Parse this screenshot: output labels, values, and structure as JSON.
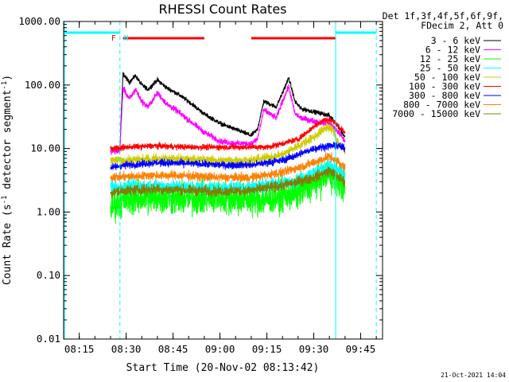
{
  "chart_data": {
    "type": "line",
    "title": "RHESSI Count Rates",
    "xlabel": "Start Time (20-Nov-02 08:13:42)",
    "ylabel": "Count Rate (s⁻¹ detector segment⁻¹)",
    "ylabel_main": "Count Rate (s",
    "ylabel_sup1": "-1",
    "ylabel_mid": " detector segment",
    "ylabel_sup2": "-1",
    "ylabel_end": ")",
    "yscale": "log",
    "xlim": [
      "08:10",
      "09:52"
    ],
    "ylim": [
      0.01,
      1000
    ],
    "x_ticks": [
      "08:15",
      "08:30",
      "08:45",
      "09:00",
      "09:15",
      "09:30",
      "09:45"
    ],
    "y_ticks": [
      "0.01",
      "0.10",
      "1.00",
      "10.00",
      "100.00",
      "1000.00"
    ],
    "legend_header": [
      "Det 1f,3f,4f,5f,6f,9f,",
      "FDecim 2, Att 0"
    ],
    "legend_position": "top-right, outside plot",
    "footer": "21-Oct-2021 14:04",
    "annotations": [
      {
        "text": "F",
        "x": "08:26",
        "color": "#ff0000"
      },
      {
        "text": "N",
        "x": "08:30",
        "color": "#00ffff"
      }
    ],
    "night_segments": [
      {
        "from": "08:10",
        "to": "08:28"
      },
      {
        "from": "09:37",
        "to": "09:50"
      }
    ],
    "flare_flag_segments": [
      {
        "from": "08:29",
        "to": "08:55"
      },
      {
        "from": "09:10",
        "to": "09:37"
      }
    ],
    "cyan_markers_solid": [
      "08:10",
      "09:37"
    ],
    "cyan_markers_dashed": [
      "08:28",
      "09:50"
    ],
    "data_start": "08:25",
    "data_end": "09:40",
    "series": [
      {
        "name": "3 - 6 keV",
        "color": "#000000",
        "noise": 0.03,
        "points": [
          [
            "08:25",
            10
          ],
          [
            "08:28",
            10
          ],
          [
            "08:29",
            150
          ],
          [
            "08:31",
            110
          ],
          [
            "08:33",
            140
          ],
          [
            "08:35",
            100
          ],
          [
            "08:37",
            85
          ],
          [
            "08:40",
            120
          ],
          [
            "08:43",
            90
          ],
          [
            "08:46",
            75
          ],
          [
            "08:50",
            55
          ],
          [
            "08:55",
            35
          ],
          [
            "09:00",
            25
          ],
          [
            "09:05",
            20
          ],
          [
            "09:10",
            16
          ],
          [
            "09:12",
            20
          ],
          [
            "09:14",
            55
          ],
          [
            "09:16",
            50
          ],
          [
            "09:18",
            45
          ],
          [
            "09:20",
            75
          ],
          [
            "09:22",
            130
          ],
          [
            "09:24",
            55
          ],
          [
            "09:26",
            42
          ],
          [
            "09:30",
            38
          ],
          [
            "09:35",
            33
          ],
          [
            "09:38",
            22
          ],
          [
            "09:40",
            15
          ]
        ]
      },
      {
        "name": "6 - 12 keV",
        "color": "#ff00ff",
        "noise": 0.04,
        "points": [
          [
            "08:25",
            9
          ],
          [
            "08:28",
            9
          ],
          [
            "08:29",
            90
          ],
          [
            "08:31",
            60
          ],
          [
            "08:33",
            85
          ],
          [
            "08:35",
            55
          ],
          [
            "08:37",
            45
          ],
          [
            "08:40",
            75
          ],
          [
            "08:43",
            50
          ],
          [
            "08:46",
            40
          ],
          [
            "08:50",
            28
          ],
          [
            "08:55",
            18
          ],
          [
            "09:00",
            13
          ],
          [
            "09:05",
            12
          ],
          [
            "09:10",
            12
          ],
          [
            "09:12",
            14
          ],
          [
            "09:14",
            40
          ],
          [
            "09:16",
            35
          ],
          [
            "09:18",
            30
          ],
          [
            "09:20",
            55
          ],
          [
            "09:22",
            95
          ],
          [
            "09:24",
            35
          ],
          [
            "09:26",
            30
          ],
          [
            "09:30",
            27
          ],
          [
            "09:35",
            25
          ],
          [
            "09:38",
            18
          ],
          [
            "09:40",
            13
          ]
        ]
      },
      {
        "name": "12 - 25 keV",
        "color": "#00ff00",
        "noise": 0.22,
        "points": [
          [
            "08:25",
            1.2
          ],
          [
            "08:30",
            1.6
          ],
          [
            "08:40",
            1.7
          ],
          [
            "08:50",
            1.6
          ],
          [
            "09:00",
            1.7
          ],
          [
            "09:10",
            1.6
          ],
          [
            "09:15",
            1.6
          ],
          [
            "09:20",
            1.8
          ],
          [
            "09:25",
            2.0
          ],
          [
            "09:30",
            2.8
          ],
          [
            "09:35",
            4.0
          ],
          [
            "09:38",
            3.0
          ],
          [
            "09:40",
            2.5
          ]
        ]
      },
      {
        "name": "25 - 50 keV",
        "color": "#00ffff",
        "noise": 0.09,
        "points": [
          [
            "08:25",
            2.5
          ],
          [
            "08:30",
            2.5
          ],
          [
            "08:40",
            2.6
          ],
          [
            "08:50",
            2.5
          ],
          [
            "09:00",
            2.4
          ],
          [
            "09:10",
            2.5
          ],
          [
            "09:20",
            2.8
          ],
          [
            "09:25",
            3.2
          ],
          [
            "09:30",
            4.2
          ],
          [
            "09:35",
            5.5
          ],
          [
            "09:38",
            4.5
          ],
          [
            "09:40",
            3.8
          ]
        ]
      },
      {
        "name": "50 - 100 keV",
        "color": "#cccc00",
        "noise": 0.06,
        "points": [
          [
            "08:25",
            6.5
          ],
          [
            "08:30",
            6.5
          ],
          [
            "08:40",
            7.0
          ],
          [
            "08:50",
            6.8
          ],
          [
            "09:00",
            6.5
          ],
          [
            "09:10",
            6.5
          ],
          [
            "09:20",
            8.0
          ],
          [
            "09:25",
            11
          ],
          [
            "09:30",
            15
          ],
          [
            "09:34",
            22
          ],
          [
            "09:36",
            20
          ],
          [
            "09:38",
            12
          ],
          [
            "09:40",
            9
          ]
        ]
      },
      {
        "name": "100 - 300 keV",
        "color": "#ff0000",
        "noise": 0.04,
        "points": [
          [
            "08:25",
            10
          ],
          [
            "08:30",
            10.5
          ],
          [
            "08:40",
            11
          ],
          [
            "08:50",
            10.5
          ],
          [
            "09:00",
            10.5
          ],
          [
            "09:10",
            10.5
          ],
          [
            "09:15",
            10.5
          ],
          [
            "09:20",
            12
          ],
          [
            "09:25",
            14
          ],
          [
            "09:30",
            22
          ],
          [
            "09:33",
            28
          ],
          [
            "09:36",
            28
          ],
          [
            "09:38",
            22
          ],
          [
            "09:40",
            18
          ]
        ]
      },
      {
        "name": "300 - 800 keV",
        "color": "#0000ff",
        "noise": 0.05,
        "points": [
          [
            "08:25",
            5
          ],
          [
            "08:30",
            5.5
          ],
          [
            "08:40",
            6
          ],
          [
            "08:50",
            5.8
          ],
          [
            "09:00",
            5.5
          ],
          [
            "09:10",
            5.5
          ],
          [
            "09:20",
            6.5
          ],
          [
            "09:25",
            8
          ],
          [
            "09:30",
            10
          ],
          [
            "09:35",
            11
          ],
          [
            "09:38",
            11
          ],
          [
            "09:40",
            10
          ]
        ]
      },
      {
        "name": "800 - 7000 keV",
        "color": "#ff8000",
        "noise": 0.06,
        "points": [
          [
            "08:25",
            3.5
          ],
          [
            "08:30",
            3.6
          ],
          [
            "08:40",
            3.8
          ],
          [
            "08:50",
            3.7
          ],
          [
            "09:00",
            3.5
          ],
          [
            "09:10",
            3.5
          ],
          [
            "09:20",
            4.2
          ],
          [
            "09:25",
            5
          ],
          [
            "09:30",
            6
          ],
          [
            "09:35",
            7.5
          ],
          [
            "09:38",
            6
          ],
          [
            "09:40",
            5
          ]
        ]
      },
      {
        "name": "7000 - 15000 keV",
        "color": "#808000",
        "noise": 0.07,
        "points": [
          [
            "08:25",
            2.0
          ],
          [
            "08:30",
            2.2
          ],
          [
            "08:40",
            2.3
          ],
          [
            "08:50",
            2.2
          ],
          [
            "09:00",
            2.1
          ],
          [
            "09:10",
            2.2
          ],
          [
            "09:20",
            2.6
          ],
          [
            "09:25",
            3.0
          ],
          [
            "09:30",
            3.5
          ],
          [
            "09:35",
            4.5
          ],
          [
            "09:38",
            3.5
          ],
          [
            "09:40",
            3.0
          ]
        ]
      }
    ]
  }
}
